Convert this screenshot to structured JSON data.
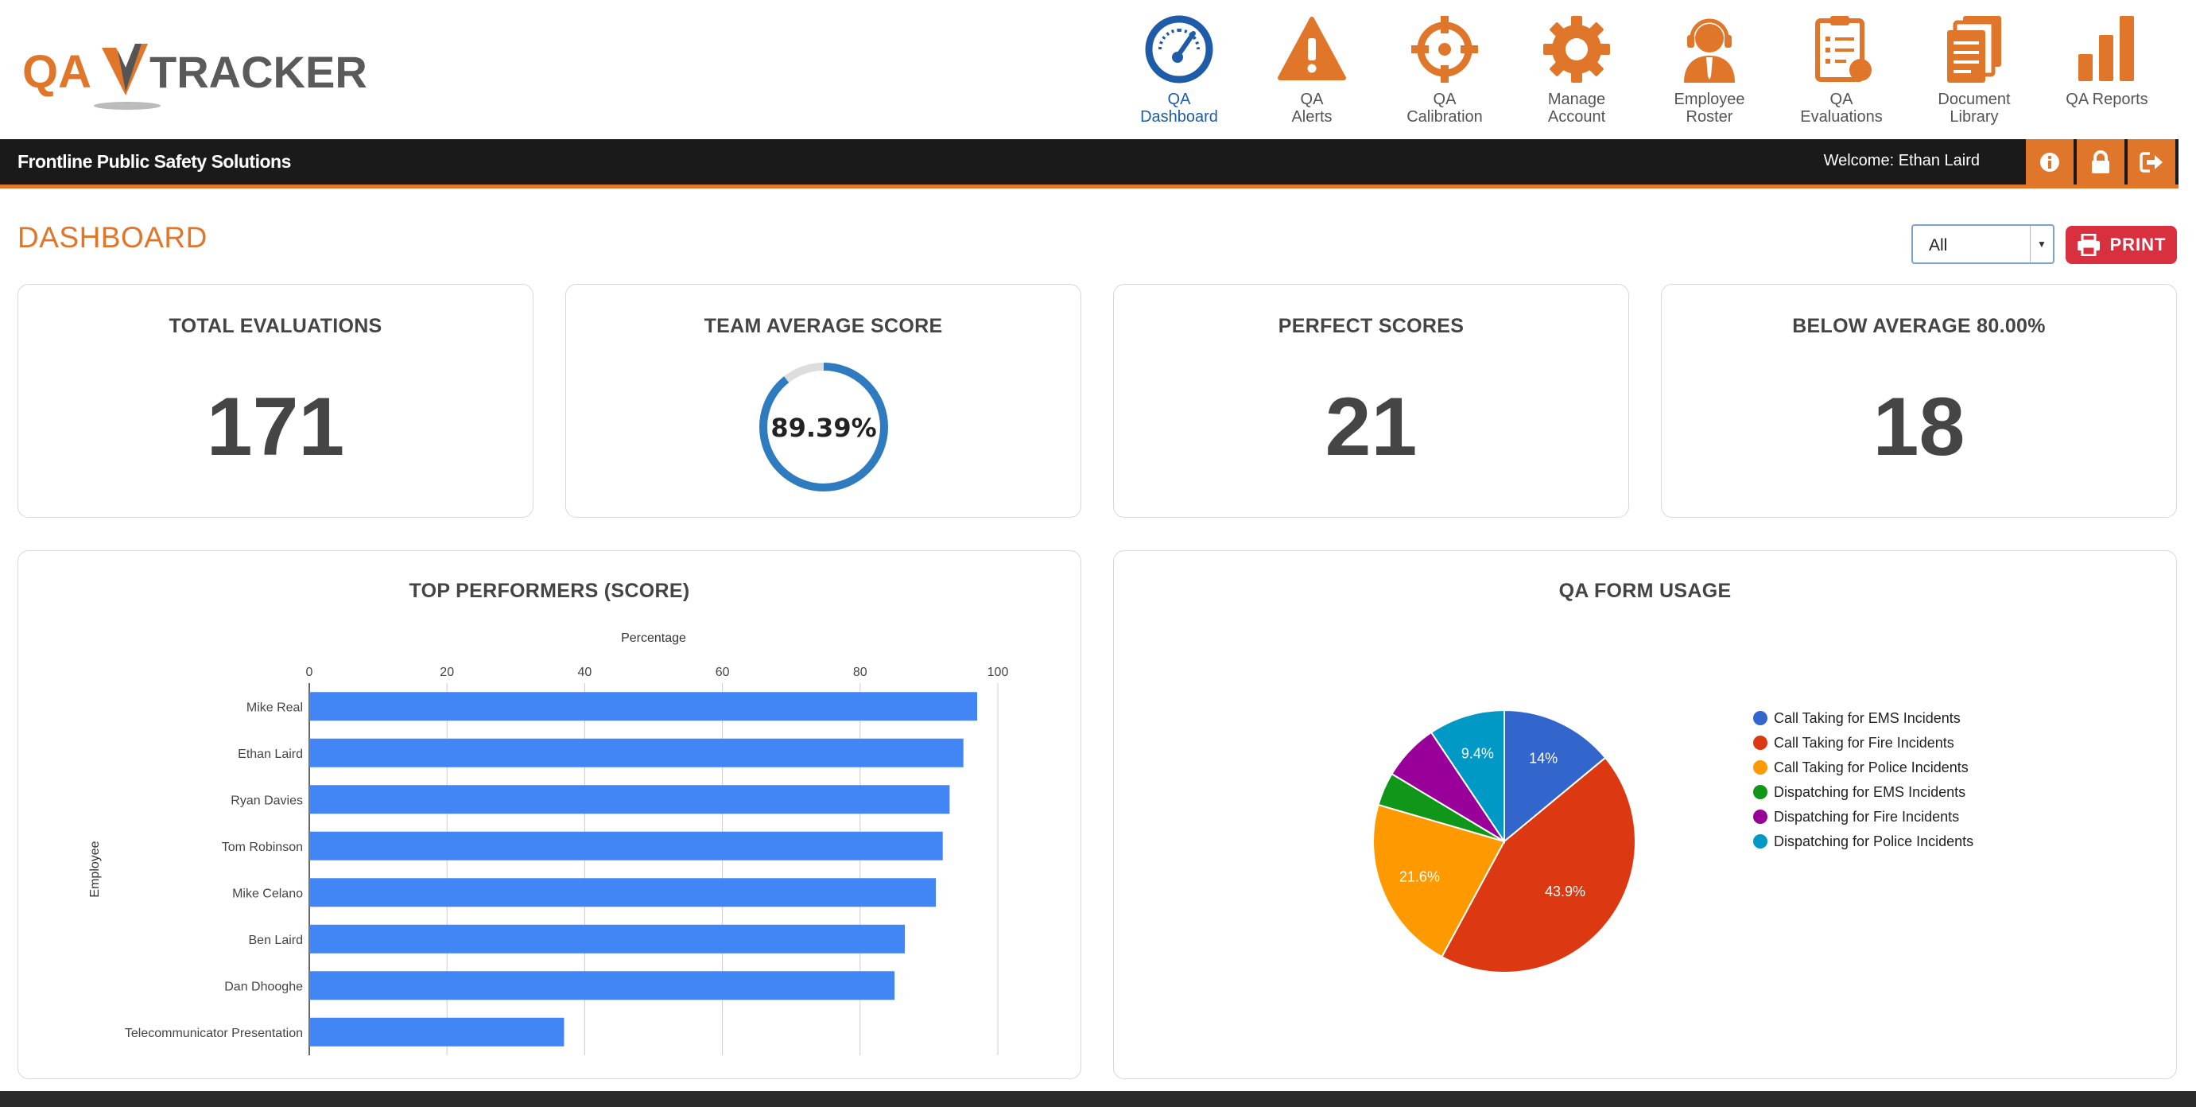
{
  "app": {
    "logo_text_left": "QA",
    "logo_text_right": "TRACKER",
    "organization": "Frontline Public Safety Solutions",
    "welcome": "Welcome: Ethan Laird"
  },
  "nav": {
    "items": [
      {
        "label": "QA\nDashboard",
        "icon": "speedometer-icon",
        "active": true
      },
      {
        "label": "QA\nAlerts",
        "icon": "warning-icon",
        "active": false
      },
      {
        "label": "QA\nCalibration",
        "icon": "crosshair-icon",
        "active": false
      },
      {
        "label": "Manage\nAccount",
        "icon": "gear-icon",
        "active": false
      },
      {
        "label": "Employee\nRoster",
        "icon": "headset-person-icon",
        "active": false
      },
      {
        "label": "QA\nEvaluations",
        "icon": "clipboard-icon",
        "active": false
      },
      {
        "label": "Document\nLibrary",
        "icon": "documents-icon",
        "active": false
      },
      {
        "label": "QA Reports",
        "icon": "bar-chart-icon",
        "active": false
      }
    ]
  },
  "colors": {
    "accent": "#e0762a",
    "nav_active": "#1f5ca8",
    "print_button": "#d8303f",
    "bar": "#4285f4",
    "gauge": "#2f7bbf"
  },
  "page": {
    "title": "DASHBOARD",
    "filter_value": "All",
    "print_label": "PRINT"
  },
  "stats": {
    "total_evaluations": {
      "title": "TOTAL EVALUATIONS",
      "value": "171"
    },
    "team_average": {
      "title": "TEAM AVERAGE SCORE",
      "value": "89.39%",
      "fraction": 0.8939
    },
    "perfect_scores": {
      "title": "PERFECT SCORES",
      "value": "21"
    },
    "below_average": {
      "title": "BELOW AVERAGE 80.00%",
      "value": "18"
    }
  },
  "chart_data": [
    {
      "type": "bar",
      "orientation": "horizontal",
      "title": "TOP PERFORMERS (SCORE)",
      "xlabel": "Percentage",
      "ylabel": "Employee",
      "xlim": [
        0,
        100
      ],
      "xticks": [
        0,
        20,
        40,
        60,
        80,
        100
      ],
      "grid": true,
      "categories": [
        "Mike Real",
        "Ethan Laird",
        "Ryan Davies",
        "Tom Robinson",
        "Mike Celano",
        "Ben Laird",
        "Dan Dhooghe",
        "Telecommunicator Presentation"
      ],
      "values": [
        97,
        95,
        93,
        92,
        91,
        86.5,
        85,
        37
      ]
    },
    {
      "type": "pie",
      "title": "QA FORM USAGE",
      "legend": "right",
      "slices": [
        {
          "label": "Call Taking for EMS Incidents",
          "value": 14,
          "display": "14%",
          "color": "#3366cc"
        },
        {
          "label": "Call Taking for Fire Incidents",
          "value": 43.9,
          "display": "43.9%",
          "color": "#dc3912"
        },
        {
          "label": "Call Taking for Police Incidents",
          "value": 21.6,
          "display": "21.6%",
          "color": "#ff9900"
        },
        {
          "label": "Dispatching for EMS Incidents",
          "value": 4.1,
          "display": "",
          "color": "#109618"
        },
        {
          "label": "Dispatching for Fire Incidents",
          "value": 7.0,
          "display": "",
          "color": "#990099"
        },
        {
          "label": "Dispatching for Police Incidents",
          "value": 9.4,
          "display": "9.4%",
          "color": "#0099c6"
        }
      ]
    }
  ]
}
